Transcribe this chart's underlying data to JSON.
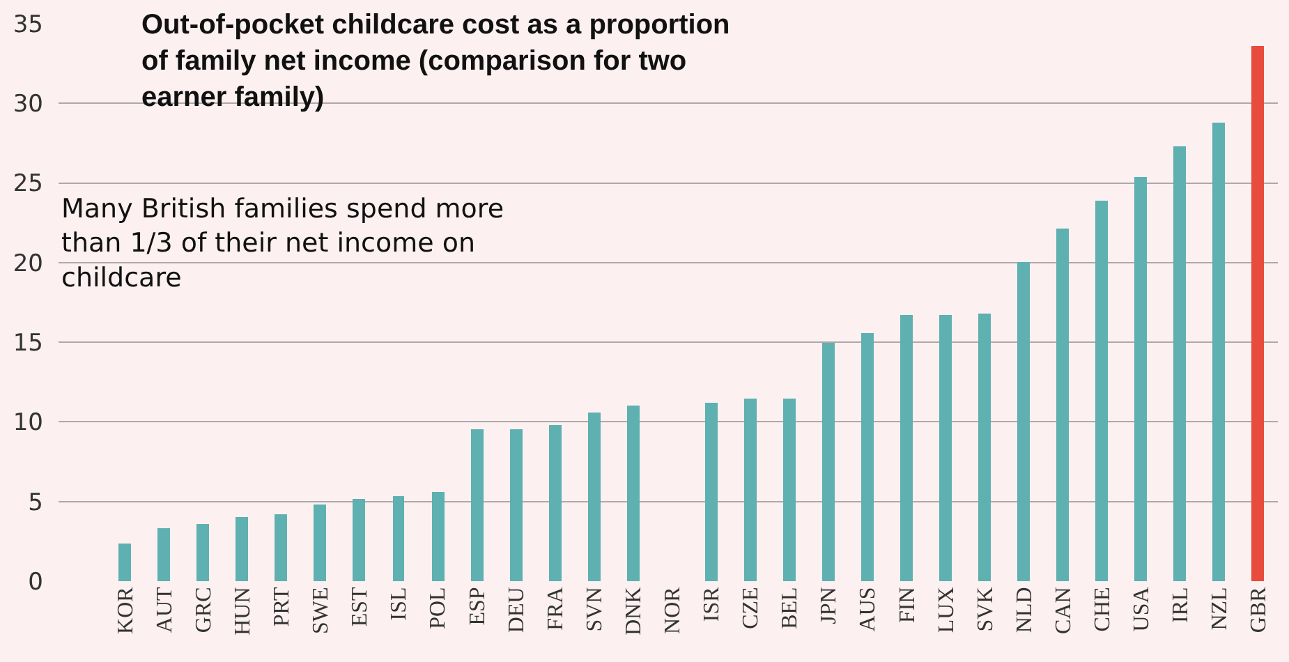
{
  "chart_data": {
    "type": "bar",
    "title": "Out-of-pocket childcare cost as a proportion of family net income (comparison for two earner family)",
    "annotations": [
      "Many British families spend more than 1/3 of their net income on childcare"
    ],
    "categories": [
      "KOR",
      "AUT",
      "GRC",
      "HUN",
      "PRT",
      "SWE",
      "EST",
      "ISL",
      "POL",
      "ESP",
      "DEU",
      "FRA",
      "SVN",
      "DNK",
      "NOR",
      "ISR",
      "CZE",
      "BEL",
      "JPN",
      "AUS",
      "FIN",
      "LUX",
      "SVK",
      "NLD",
      "CAN",
      "CHE",
      "USA",
      "IRL",
      "NZL",
      "GBR"
    ],
    "values": [
      2.4,
      3.3,
      3.6,
      4.0,
      4.2,
      4.8,
      5.2,
      5.3,
      5.6,
      9.5,
      9.5,
      9.8,
      10.6,
      11.0,
      null,
      11.2,
      11.5,
      11.5,
      15.0,
      15.6,
      16.7,
      16.7,
      16.8,
      20.0,
      22.1,
      23.9,
      25.4,
      27.3,
      28.8,
      33.6
    ],
    "colors": [
      "#5fb0b0",
      "#5fb0b0",
      "#5fb0b0",
      "#5fb0b0",
      "#5fb0b0",
      "#5fb0b0",
      "#5fb0b0",
      "#5fb0b0",
      "#5fb0b0",
      "#5fb0b0",
      "#5fb0b0",
      "#5fb0b0",
      "#5fb0b0",
      "#5fb0b0",
      "#5fb0b0",
      "#5fb0b0",
      "#5fb0b0",
      "#5fb0b0",
      "#5fb0b0",
      "#5fb0b0",
      "#5fb0b0",
      "#5fb0b0",
      "#5fb0b0",
      "#5fb0b0",
      "#5fb0b0",
      "#5fb0b0",
      "#5fb0b0",
      "#5fb0b0",
      "#5fb0b0",
      "#e84c3d"
    ],
    "ylim": [
      0,
      35
    ],
    "yticks": [
      0,
      5,
      10,
      15,
      20,
      25,
      30,
      35
    ],
    "grid": "y"
  }
}
